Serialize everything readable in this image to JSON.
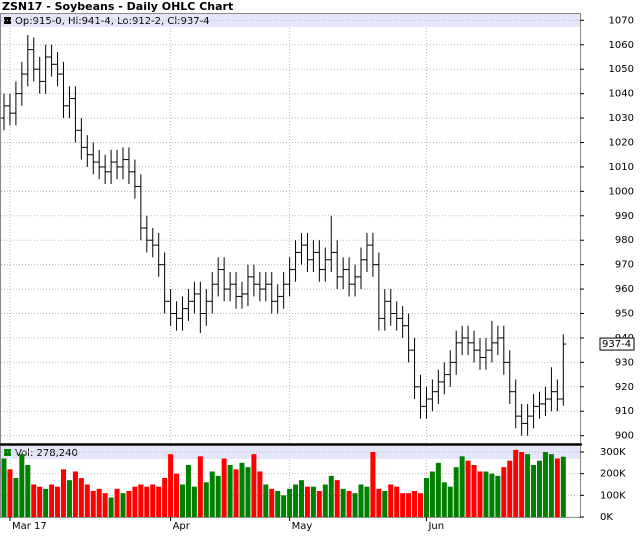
{
  "chart_data": {
    "type": "ohlc",
    "title": "ZSN17 - Soybeans - Daily OHLC Chart",
    "info": "Op:915-0, Hi:941-4, Lo:912-2, Cl:937-4",
    "last_label": "937-4",
    "categories": [
      null,
      "Mar 17",
      null,
      null,
      null,
      null,
      null,
      null,
      null,
      null,
      null,
      null,
      null,
      null,
      null,
      null,
      null,
      null,
      null,
      null,
      null,
      null,
      null,
      null,
      null,
      null,
      null,
      null,
      "Apr",
      null,
      null,
      null,
      null,
      null,
      null,
      null,
      null,
      null,
      null,
      null,
      null,
      null,
      null,
      null,
      null,
      null,
      null,
      null,
      "May",
      null,
      null,
      null,
      null,
      null,
      null,
      null,
      null,
      null,
      null,
      null,
      null,
      null,
      null,
      null,
      null,
      null,
      null,
      null,
      null,
      null,
      null,
      "Jun",
      null,
      null,
      null,
      null,
      null,
      null,
      null,
      null,
      null,
      null,
      null,
      null,
      null,
      null,
      null,
      null,
      null,
      null,
      null,
      null,
      null,
      null,
      null
    ],
    "open": [
      1030,
      1035,
      1032,
      1040,
      1048,
      1058,
      1050,
      1045,
      1055,
      1052,
      1048,
      1035,
      1038,
      1025,
      1018,
      1015,
      1012,
      1010,
      1008,
      1012,
      1010,
      1013,
      1008,
      1002,
      985,
      980,
      978,
      970,
      955,
      950,
      948,
      952,
      955,
      958,
      950,
      955,
      962,
      968,
      960,
      962,
      957,
      958,
      965,
      962,
      960,
      962,
      955,
      957,
      962,
      968,
      975,
      978,
      972,
      975,
      968,
      972,
      975,
      965,
      968,
      962,
      965,
      972,
      978,
      970,
      948,
      955,
      950,
      948,
      945,
      935,
      920,
      912,
      915,
      918,
      922,
      925,
      930,
      938,
      940,
      938,
      935,
      932,
      935,
      938,
      940,
      930,
      918,
      908,
      905,
      908,
      912,
      913,
      915,
      918,
      915
    ],
    "high": [
      1040,
      1040,
      1045,
      1053,
      1064,
      1063,
      1055,
      1060,
      1060,
      1057,
      1053,
      1043,
      1043,
      1030,
      1023,
      1020,
      1017,
      1015,
      1017,
      1017,
      1018,
      1018,
      1013,
      1007,
      990,
      985,
      983,
      975,
      960,
      955,
      957,
      960,
      963,
      963,
      960,
      967,
      973,
      973,
      967,
      967,
      963,
      970,
      970,
      967,
      967,
      967,
      962,
      967,
      973,
      980,
      983,
      983,
      980,
      980,
      977,
      990,
      980,
      973,
      973,
      970,
      977,
      983,
      983,
      975,
      960,
      960,
      955,
      953,
      950,
      940,
      925,
      920,
      923,
      927,
      930,
      935,
      943,
      945,
      945,
      943,
      940,
      940,
      947,
      945,
      945,
      935,
      923,
      913,
      913,
      917,
      918,
      920,
      928,
      923,
      941.5
    ],
    "low": [
      1025,
      1027,
      1027,
      1035,
      1043,
      1045,
      1040,
      1040,
      1047,
      1043,
      1030,
      1030,
      1020,
      1013,
      1010,
      1007,
      1005,
      1003,
      1003,
      1005,
      1005,
      1003,
      997,
      980,
      975,
      973,
      965,
      950,
      945,
      943,
      943,
      947,
      950,
      942,
      945,
      950,
      957,
      955,
      955,
      952,
      952,
      953,
      957,
      955,
      955,
      950,
      950,
      952,
      957,
      963,
      970,
      967,
      967,
      963,
      963,
      967,
      960,
      960,
      957,
      957,
      960,
      967,
      965,
      943,
      943,
      945,
      943,
      940,
      930,
      915,
      907,
      907,
      910,
      913,
      917,
      920,
      925,
      933,
      933,
      930,
      927,
      927,
      930,
      933,
      925,
      913,
      903,
      900,
      900,
      903,
      907,
      908,
      910,
      910,
      912.25
    ],
    "close": [
      1035,
      1032,
      1040,
      1048,
      1058,
      1050,
      1045,
      1055,
      1052,
      1048,
      1035,
      1038,
      1025,
      1018,
      1015,
      1012,
      1010,
      1008,
      1012,
      1010,
      1013,
      1008,
      1002,
      985,
      980,
      978,
      970,
      955,
      950,
      948,
      952,
      955,
      958,
      950,
      955,
      962,
      968,
      960,
      962,
      957,
      958,
      965,
      962,
      960,
      962,
      955,
      957,
      962,
      968,
      975,
      978,
      972,
      975,
      968,
      972,
      975,
      965,
      968,
      962,
      965,
      972,
      978,
      970,
      948,
      955,
      950,
      948,
      945,
      935,
      920,
      912,
      915,
      918,
      922,
      925,
      930,
      938,
      940,
      938,
      935,
      932,
      935,
      938,
      940,
      930,
      918,
      908,
      905,
      908,
      912,
      913,
      915,
      918,
      915,
      937.5
    ],
    "ylim": [
      897,
      1073
    ],
    "yticks": [
      900,
      910,
      920,
      930,
      940,
      950,
      960,
      970,
      980,
      990,
      1000,
      1010,
      1020,
      1030,
      1040,
      1050,
      1060,
      1070
    ],
    "grid": true,
    "bar_color": "#000000",
    "up_color": "#008000",
    "down_color": "#ff0000",
    "volume": {
      "label": "Vol: 278,240",
      "values": [
        270000,
        220000,
        180000,
        290000,
        240000,
        150000,
        140000,
        130000,
        150000,
        140000,
        220000,
        170000,
        210000,
        180000,
        150000,
        120000,
        130000,
        110000,
        90000,
        130000,
        110000,
        120000,
        140000,
        150000,
        140000,
        150000,
        140000,
        180000,
        290000,
        200000,
        150000,
        240000,
        140000,
        280000,
        160000,
        210000,
        190000,
        270000,
        240000,
        220000,
        250000,
        230000,
        290000,
        210000,
        150000,
        130000,
        120000,
        100000,
        130000,
        150000,
        170000,
        140000,
        140000,
        120000,
        150000,
        190000,
        170000,
        130000,
        120000,
        110000,
        150000,
        140000,
        300000,
        130000,
        120000,
        150000,
        140000,
        110000,
        110000,
        120000,
        110000,
        180000,
        210000,
        250000,
        160000,
        140000,
        230000,
        280000,
        260000,
        240000,
        210000,
        210000,
        200000,
        190000,
        230000,
        260000,
        310000,
        300000,
        290000,
        240000,
        260000,
        300000,
        290000,
        270000,
        278240
      ],
      "ylim": [
        0,
        300000
      ],
      "yticks": [
        {
          "value": 0,
          "label": "0K"
        },
        {
          "value": 100000,
          "label": "100K"
        },
        {
          "value": 200000,
          "label": "200K"
        },
        {
          "value": 300000,
          "label": "300K"
        }
      ]
    }
  }
}
